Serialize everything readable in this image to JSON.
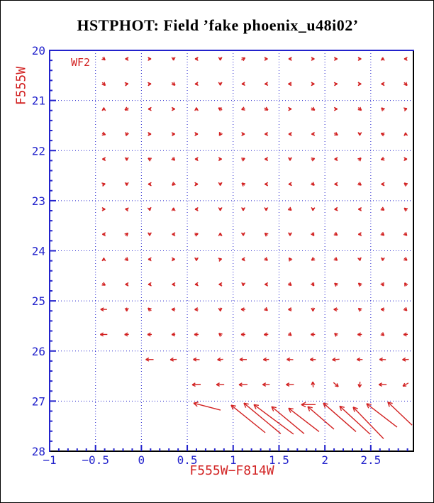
{
  "title": "HSTPHOT: Field ’fake phoenix_u48i02’",
  "annotation": "WF2",
  "axes": {
    "x": {
      "label": "F555W−F814W",
      "min": -1,
      "max": 2.965,
      "major_tick_values": [
        -1,
        -0.5,
        0,
        0.5,
        1,
        1.5,
        2,
        2.5
      ],
      "major_tick_labels": [
        "−1",
        "−0.5",
        "0",
        "0.5",
        "1",
        "1.5",
        "2",
        "2.5"
      ],
      "minor_step": 0.1,
      "grid_values": [
        -0.5,
        0,
        0.5,
        1,
        1.5,
        2,
        2.5
      ]
    },
    "y": {
      "label": "F555W",
      "min": 20,
      "max": 28,
      "major_tick_values": [
        20,
        21,
        22,
        23,
        24,
        25,
        26,
        27,
        28
      ],
      "major_tick_labels": [
        "20",
        "21",
        "22",
        "23",
        "24",
        "25",
        "26",
        "27",
        "28"
      ],
      "minor_step": 0.2,
      "grid_values": [
        21,
        22,
        23,
        24,
        25,
        26,
        27
      ]
    }
  },
  "colors": {
    "axis_blue": "#2222cc",
    "frame_black": "#000000",
    "arrow_red": "#d22222",
    "title_black": "#000000",
    "background": "#ffffff"
  },
  "chart_data": {
    "type": "scatter",
    "glyph": "quiver-arrows",
    "title": "HSTPHOT: Field ’fake phoenix_u48i02’",
    "xlabel": "F555W−F814W",
    "ylabel": "F555W",
    "xlim": [
      -1,
      2.965
    ],
    "ylim": [
      28,
      20
    ],
    "grid": true,
    "annotation": "WF2",
    "small_arrows": [
      [
        -0.41,
        20.17,
        -40,
        5
      ],
      [
        -0.16,
        20.17,
        180,
        4
      ],
      [
        0.09,
        20.17,
        0,
        4
      ],
      [
        0.35,
        20.17,
        -90,
        4
      ],
      [
        0.6,
        20.17,
        180,
        4
      ],
      [
        0.86,
        20.17,
        -90,
        4
      ],
      [
        1.11,
        20.17,
        30,
        6
      ],
      [
        1.36,
        20.17,
        0,
        4
      ],
      [
        1.62,
        20.17,
        180,
        4
      ],
      [
        1.87,
        20.17,
        0,
        4
      ],
      [
        2.12,
        20.17,
        0,
        4
      ],
      [
        2.38,
        20.17,
        0,
        4
      ],
      [
        2.63,
        20.17,
        90,
        4
      ],
      [
        2.88,
        20.17,
        180,
        4
      ],
      [
        -0.41,
        20.67,
        -45,
        6
      ],
      [
        -0.16,
        20.67,
        10,
        4
      ],
      [
        0.09,
        20.67,
        5,
        4
      ],
      [
        0.35,
        20.67,
        -40,
        6
      ],
      [
        0.6,
        20.67,
        185,
        4
      ],
      [
        0.86,
        20.67,
        -90,
        4
      ],
      [
        1.11,
        20.67,
        185,
        4
      ],
      [
        1.36,
        20.67,
        185,
        4
      ],
      [
        1.62,
        20.67,
        180,
        5
      ],
      [
        1.87,
        20.67,
        0,
        4
      ],
      [
        2.12,
        20.67,
        5,
        4
      ],
      [
        2.38,
        20.67,
        0,
        4
      ],
      [
        2.63,
        20.67,
        180,
        4
      ],
      [
        2.88,
        20.67,
        -45,
        6
      ],
      [
        -0.41,
        21.17,
        90,
        4
      ],
      [
        -0.16,
        21.17,
        -150,
        6
      ],
      [
        0.09,
        21.17,
        180,
        4
      ],
      [
        0.35,
        21.17,
        0,
        4
      ],
      [
        0.6,
        21.17,
        90,
        4
      ],
      [
        0.86,
        21.17,
        150,
        6
      ],
      [
        1.11,
        21.17,
        200,
        5
      ],
      [
        1.36,
        21.17,
        -30,
        6
      ],
      [
        1.62,
        21.17,
        0,
        4
      ],
      [
        1.87,
        21.17,
        -35,
        6
      ],
      [
        2.12,
        21.17,
        0,
        4
      ],
      [
        2.38,
        21.17,
        -40,
        6
      ],
      [
        2.63,
        21.17,
        135,
        5
      ],
      [
        2.88,
        21.17,
        15,
        4
      ],
      [
        -0.41,
        21.67,
        -20,
        5
      ],
      [
        -0.16,
        21.67,
        -110,
        5
      ],
      [
        0.09,
        21.67,
        0,
        4
      ],
      [
        0.35,
        21.67,
        5,
        4
      ],
      [
        0.6,
        21.67,
        0,
        4
      ],
      [
        0.86,
        21.67,
        -120,
        5
      ],
      [
        1.11,
        21.67,
        0,
        4
      ],
      [
        1.36,
        21.67,
        185,
        4
      ],
      [
        1.62,
        21.67,
        180,
        4
      ],
      [
        1.87,
        21.67,
        185,
        4
      ],
      [
        2.12,
        21.67,
        -30,
        6
      ],
      [
        2.38,
        21.67,
        -90,
        4
      ],
      [
        2.63,
        21.67,
        160,
        5
      ],
      [
        2.88,
        21.67,
        95,
        4
      ],
      [
        -0.41,
        22.17,
        180,
        4
      ],
      [
        -0.16,
        22.17,
        -90,
        4
      ],
      [
        0.09,
        22.17,
        150,
        5
      ],
      [
        0.35,
        22.17,
        -45,
        5
      ],
      [
        0.6,
        22.17,
        180,
        4
      ],
      [
        0.86,
        22.17,
        0,
        4
      ],
      [
        1.11,
        22.17,
        25,
        5
      ],
      [
        1.36,
        22.17,
        180,
        4
      ],
      [
        1.62,
        22.17,
        -90,
        4
      ],
      [
        1.87,
        22.17,
        20,
        5
      ],
      [
        2.12,
        22.17,
        180,
        4
      ],
      [
        2.38,
        22.17,
        45,
        5
      ],
      [
        2.63,
        22.17,
        -160,
        5
      ],
      [
        2.88,
        22.17,
        0,
        4
      ],
      [
        -0.41,
        22.67,
        15,
        4
      ],
      [
        -0.16,
        22.67,
        -90,
        4
      ],
      [
        0.09,
        22.67,
        180,
        4
      ],
      [
        0.35,
        22.67,
        -140,
        5
      ],
      [
        0.6,
        22.67,
        0,
        4
      ],
      [
        0.86,
        22.67,
        -90,
        4
      ],
      [
        1.11,
        22.67,
        140,
        5
      ],
      [
        1.36,
        22.67,
        180,
        4
      ],
      [
        1.62,
        22.67,
        185,
        4
      ],
      [
        1.87,
        22.67,
        -40,
        5
      ],
      [
        2.12,
        22.67,
        182,
        4
      ],
      [
        2.38,
        22.67,
        -35,
        5
      ],
      [
        2.63,
        22.67,
        180,
        4
      ],
      [
        2.88,
        22.67,
        140,
        5
      ],
      [
        -0.41,
        23.17,
        0,
        4
      ],
      [
        -0.16,
        23.17,
        170,
        4
      ],
      [
        0.09,
        23.17,
        -80,
        4
      ],
      [
        0.35,
        23.17,
        90,
        4
      ],
      [
        0.6,
        23.17,
        180,
        4
      ],
      [
        0.86,
        23.17,
        -90,
        4
      ],
      [
        1.11,
        23.17,
        -90,
        4
      ],
      [
        1.36,
        23.17,
        -90,
        4
      ],
      [
        1.62,
        23.17,
        -40,
        5
      ],
      [
        1.87,
        23.17,
        -95,
        4
      ],
      [
        2.12,
        23.17,
        185,
        4
      ],
      [
        2.38,
        23.17,
        180,
        4
      ],
      [
        2.63,
        23.17,
        -35,
        5
      ],
      [
        2.88,
        23.17,
        140,
        5
      ],
      [
        -0.41,
        23.67,
        180,
        4
      ],
      [
        -0.16,
        23.67,
        45,
        5
      ],
      [
        0.09,
        23.67,
        -90,
        4
      ],
      [
        0.35,
        23.67,
        180,
        4
      ],
      [
        0.6,
        23.67,
        20,
        5
      ],
      [
        0.86,
        23.67,
        90,
        4
      ],
      [
        1.11,
        23.67,
        -85,
        4
      ],
      [
        1.36,
        23.67,
        140,
        5
      ],
      [
        1.62,
        23.67,
        -90,
        4
      ],
      [
        1.87,
        23.67,
        -60,
        5
      ],
      [
        2.12,
        23.67,
        -35,
        5
      ],
      [
        2.38,
        23.67,
        185,
        4
      ],
      [
        2.63,
        23.67,
        -40,
        5
      ],
      [
        2.88,
        23.67,
        -45,
        5
      ],
      [
        -0.41,
        24.17,
        90,
        4
      ],
      [
        -0.16,
        24.17,
        -45,
        5
      ],
      [
        0.09,
        24.17,
        180,
        4
      ],
      [
        0.35,
        24.17,
        0,
        4
      ],
      [
        0.6,
        24.17,
        -90,
        4
      ],
      [
        0.86,
        24.17,
        15,
        4
      ],
      [
        1.11,
        24.17,
        182,
        4
      ],
      [
        1.36,
        24.17,
        -40,
        5
      ],
      [
        1.62,
        24.17,
        125,
        5
      ],
      [
        1.87,
        24.17,
        -145,
        5
      ],
      [
        2.12,
        24.17,
        -40,
        5
      ],
      [
        2.38,
        24.17,
        -80,
        4
      ],
      [
        2.63,
        24.17,
        -95,
        4
      ],
      [
        2.88,
        24.17,
        -35,
        5
      ],
      [
        -0.41,
        24.67,
        -30,
        5
      ],
      [
        -0.16,
        24.67,
        180,
        4
      ],
      [
        0.09,
        24.67,
        183,
        4
      ],
      [
        0.35,
        24.67,
        180,
        4
      ],
      [
        0.6,
        24.67,
        185,
        4
      ],
      [
        0.86,
        24.67,
        180,
        4
      ],
      [
        1.11,
        24.67,
        -95,
        4
      ],
      [
        1.36,
        24.67,
        180,
        4
      ],
      [
        1.62,
        24.67,
        -40,
        5
      ],
      [
        1.87,
        24.67,
        -60,
        5
      ],
      [
        2.12,
        24.67,
        140,
        5
      ],
      [
        2.38,
        24.67,
        135,
        5
      ],
      [
        2.63,
        24.67,
        -65,
        5
      ],
      [
        2.88,
        24.67,
        120,
        5
      ],
      [
        -0.41,
        25.17,
        180,
        9
      ],
      [
        -0.16,
        25.17,
        -90,
        5
      ],
      [
        0.09,
        25.17,
        140,
        6
      ],
      [
        0.35,
        25.17,
        180,
        5
      ],
      [
        0.6,
        25.17,
        185,
        5
      ],
      [
        0.86,
        25.17,
        -85,
        5
      ],
      [
        1.11,
        25.17,
        180,
        6
      ],
      [
        1.36,
        25.17,
        -40,
        5
      ],
      [
        1.62,
        25.17,
        185,
        5
      ],
      [
        1.87,
        25.17,
        -90,
        5
      ],
      [
        2.12,
        25.17,
        180,
        6
      ],
      [
        2.38,
        25.17,
        140,
        5
      ],
      [
        2.63,
        25.17,
        180,
        5
      ],
      [
        2.88,
        25.17,
        -45,
        5
      ],
      [
        -0.41,
        25.67,
        180,
        10
      ],
      [
        -0.16,
        25.67,
        182,
        6
      ],
      [
        0.09,
        25.67,
        180,
        6
      ],
      [
        0.35,
        25.67,
        185,
        5
      ],
      [
        0.6,
        25.67,
        180,
        6
      ],
      [
        0.86,
        25.67,
        140,
        5
      ],
      [
        1.11,
        25.67,
        180,
        6
      ],
      [
        1.36,
        25.67,
        185,
        6
      ],
      [
        1.62,
        25.67,
        -40,
        5
      ],
      [
        1.87,
        25.67,
        180,
        6
      ],
      [
        2.12,
        25.67,
        140,
        5
      ],
      [
        2.38,
        25.67,
        180,
        6
      ],
      [
        2.63,
        25.67,
        -40,
        5
      ],
      [
        2.88,
        25.67,
        182,
        6
      ],
      [
        0.09,
        26.17,
        180,
        11
      ],
      [
        0.35,
        26.17,
        183,
        9
      ],
      [
        0.6,
        26.17,
        178,
        9
      ],
      [
        0.86,
        26.17,
        185,
        8
      ],
      [
        1.11,
        26.17,
        180,
        10
      ],
      [
        1.36,
        26.17,
        182,
        8
      ],
      [
        1.62,
        26.17,
        178,
        9
      ],
      [
        1.87,
        26.17,
        180,
        8
      ],
      [
        2.12,
        26.17,
        185,
        10
      ],
      [
        2.38,
        26.17,
        180,
        8
      ],
      [
        2.63,
        26.17,
        178,
        9
      ],
      [
        2.88,
        26.17,
        183,
        9
      ],
      [
        0.6,
        26.67,
        183,
        12
      ],
      [
        0.86,
        26.67,
        180,
        11
      ],
      [
        1.11,
        26.67,
        182,
        12
      ],
      [
        1.36,
        26.67,
        180,
        10
      ],
      [
        1.62,
        26.67,
        181,
        11
      ],
      [
        1.87,
        26.67,
        95,
        8
      ],
      [
        2.12,
        26.67,
        -40,
        9
      ],
      [
        2.38,
        26.67,
        -95,
        8
      ],
      [
        2.63,
        26.67,
        180,
        11
      ],
      [
        2.88,
        26.67,
        -150,
        9
      ]
    ],
    "long_arrows": [
      [
        0.569,
        27.04,
        0.863,
        27.18
      ],
      [
        0.978,
        27.08,
        1.35,
        27.63
      ],
      [
        1.117,
        27.04,
        1.519,
        27.65
      ],
      [
        1.226,
        27.07,
        1.658,
        27.66
      ],
      [
        1.419,
        27.11,
        1.774,
        27.65
      ],
      [
        1.604,
        27.14,
        1.937,
        27.61
      ],
      [
        1.743,
        27.07,
        1.898,
        27.07
      ],
      [
        1.813,
        27.11,
        2.099,
        27.56
      ],
      [
        1.983,
        27.04,
        2.339,
        27.61
      ],
      [
        2.161,
        27.1,
        2.493,
        27.66
      ],
      [
        2.308,
        27.12,
        2.64,
        27.75
      ],
      [
        2.454,
        27.05,
        2.787,
        27.52
      ],
      [
        2.686,
        27.02,
        2.95,
        27.48
      ]
    ]
  }
}
